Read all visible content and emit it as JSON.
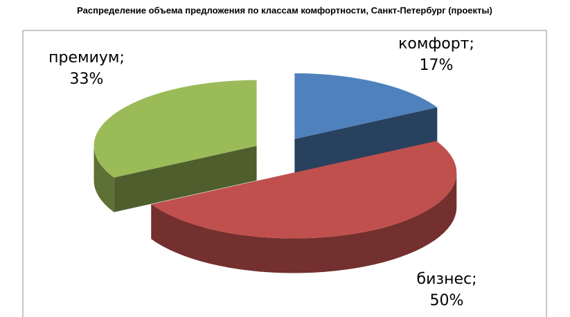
{
  "chart_data": {
    "type": "pie3d",
    "title": "Распределение объема предложения по классам комфортности, Санкт-Петербург (проекты)",
    "categories": [
      "комфорт;",
      "бизнес;",
      "премиум;"
    ],
    "values": [
      17,
      50,
      33
    ],
    "value_labels": [
      "17%",
      "50%",
      "33%"
    ],
    "colors": [
      "#4f81bd",
      "#c0504d",
      "#9bbb59"
    ]
  }
}
